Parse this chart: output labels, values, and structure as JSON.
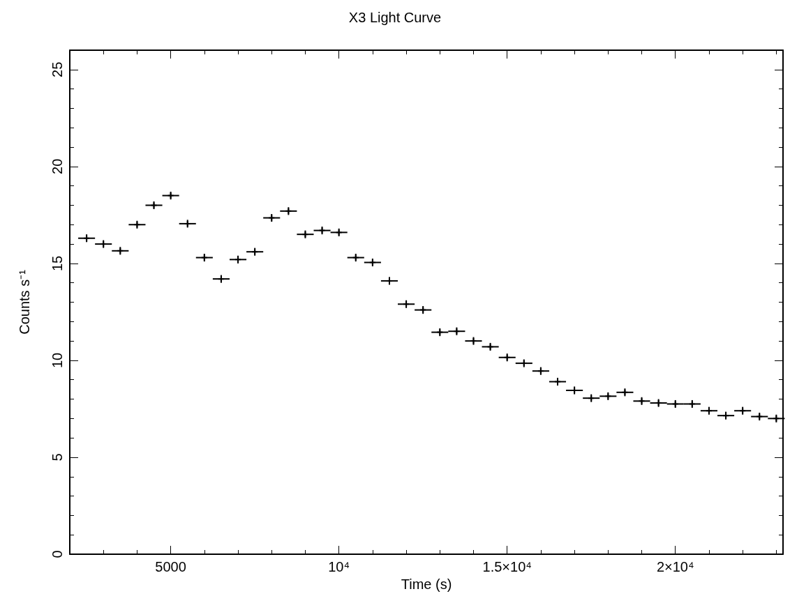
{
  "chart_data": {
    "type": "scatter",
    "title": "X3 Light Curve",
    "xlabel": "Time (s)",
    "ylabel": "Counts s⁻¹",
    "x": [
      2500,
      3000,
      3500,
      4000,
      4500,
      5000,
      5500,
      6000,
      6500,
      7000,
      7500,
      8000,
      8500,
      9000,
      9500,
      10000,
      10500,
      11000,
      11500,
      12000,
      12500,
      13000,
      13500,
      14000,
      14500,
      15000,
      15500,
      16000,
      16500,
      17000,
      17500,
      18000,
      18500,
      19000,
      19500,
      20000,
      20500,
      21000,
      21500,
      22000,
      22500,
      23000
    ],
    "values": [
      16.3,
      16.0,
      15.65,
      17.0,
      18.0,
      18.5,
      17.05,
      15.3,
      14.2,
      15.2,
      15.6,
      17.35,
      17.7,
      16.5,
      16.7,
      16.6,
      15.3,
      15.05,
      14.1,
      12.9,
      12.6,
      11.45,
      11.5,
      11.0,
      10.7,
      10.15,
      9.85,
      9.45,
      8.9,
      8.45,
      8.05,
      8.15,
      8.35,
      7.9,
      7.8,
      7.75,
      7.75,
      7.4,
      7.15,
      7.4,
      7.1,
      7.0
    ],
    "errors": [
      0.2,
      0.2,
      0.2,
      0.2,
      0.2,
      0.2,
      0.2,
      0.2,
      0.2,
      0.2,
      0.2,
      0.2,
      0.2,
      0.2,
      0.2,
      0.2,
      0.2,
      0.2,
      0.2,
      0.2,
      0.2,
      0.2,
      0.2,
      0.2,
      0.2,
      0.2,
      0.2,
      0.2,
      0.2,
      0.2,
      0.2,
      0.2,
      0.2,
      0.2,
      0.2,
      0.2,
      0.2,
      0.2,
      0.2,
      0.2,
      0.2,
      0.2
    ],
    "xerrors": [
      250,
      250,
      250,
      250,
      250,
      250,
      250,
      250,
      250,
      250,
      250,
      250,
      250,
      250,
      250,
      250,
      250,
      250,
      250,
      250,
      250,
      250,
      250,
      250,
      250,
      250,
      250,
      250,
      250,
      250,
      250,
      250,
      250,
      250,
      250,
      250,
      250,
      250,
      250,
      250,
      250,
      250
    ],
    "color": "#000000",
    "marker": "cross",
    "xlim": [
      2000,
      23200
    ],
    "xticks": [
      5000,
      {
        "value": 10000,
        "label": "10⁴"
      },
      {
        "value": 15000,
        "label": "1.5×10⁴"
      },
      {
        "value": 20000,
        "label": "2×10⁴"
      }
    ],
    "ylim": [
      0,
      26
    ],
    "yticks": [
      0,
      5,
      10,
      15,
      20,
      25
    ],
    "grid": false
  }
}
